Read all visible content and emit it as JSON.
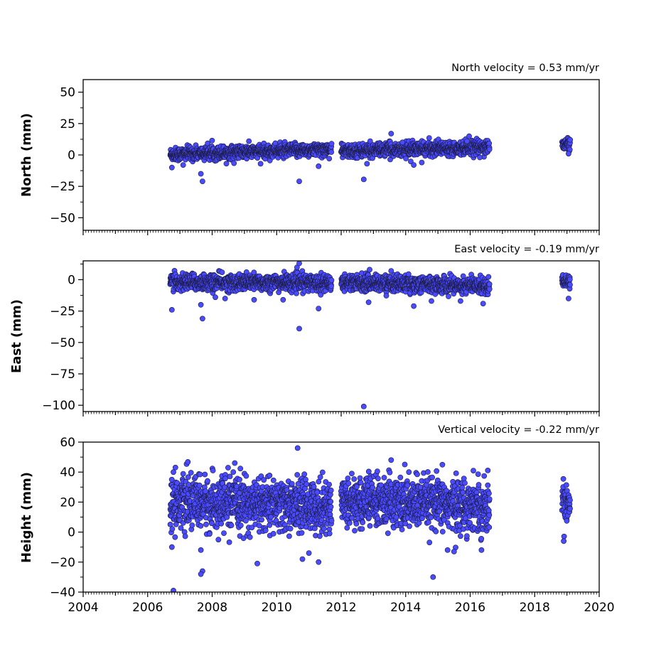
{
  "chart_data": [
    {
      "type": "scatter",
      "id": "north",
      "title": "North velocity = 0.53 mm/yr",
      "ylabel": "North (mm)",
      "xlim": [
        2004,
        2020
      ],
      "ylim": [
        -60,
        60
      ],
      "yticks": [
        -50,
        -25,
        0,
        25,
        50
      ],
      "ytick_labels": [
        "−50",
        "−25",
        "0",
        "25",
        "50"
      ],
      "show_x_tick_labels": false,
      "marker_color": "#4a4aff",
      "segments": [
        {
          "start": 2006.7,
          "end": 2011.7,
          "y0": 0.5,
          "y1": 4.5,
          "spread": 2.6
        },
        {
          "start": 2012.0,
          "end": 2016.6,
          "y0": 3.0,
          "y1": 6.5,
          "spread": 2.6
        },
        {
          "start": 2018.85,
          "end": 2019.1,
          "y0": 8.0,
          "y1": 9.0,
          "spread": 2.2
        }
      ],
      "outliers": [
        [
          2006.75,
          -10
        ],
        [
          2007.7,
          -21
        ],
        [
          2007.65,
          -15
        ],
        [
          2007.1,
          -8
        ],
        [
          2009.5,
          -7
        ],
        [
          2010.7,
          -21
        ],
        [
          2011.3,
          -9
        ],
        [
          2012.7,
          -19.5
        ],
        [
          2012.8,
          -7
        ],
        [
          2013.55,
          17
        ],
        [
          2013.9,
          10
        ],
        [
          2014.25,
          -8
        ],
        [
          2014.5,
          -6
        ],
        [
          2016.3,
          -2
        ],
        [
          2019.05,
          1
        ],
        [
          2012.9,
          11
        ],
        [
          2015.9,
          11
        ]
      ]
    },
    {
      "type": "scatter",
      "id": "east",
      "title": "East velocity = -0.19 mm/yr",
      "ylabel": "East (mm)",
      "xlim": [
        2004,
        2020
      ],
      "ylim": [
        -105,
        15
      ],
      "yticks": [
        -100,
        -75,
        -50,
        -25,
        0
      ],
      "ytick_labels": [
        "−100",
        "−75",
        "−50",
        "−25",
        "0"
      ],
      "show_x_tick_labels": false,
      "marker_color": "#4a4aff",
      "segments": [
        {
          "start": 2006.7,
          "end": 2011.7,
          "y0": -2.0,
          "y1": -2.5,
          "spread": 3.2
        },
        {
          "start": 2012.0,
          "end": 2016.6,
          "y0": -2.0,
          "y1": -5.0,
          "spread": 3.2
        },
        {
          "start": 2018.85,
          "end": 2019.1,
          "y0": -1.0,
          "y1": -1.5,
          "spread": 2.5
        }
      ],
      "outliers": [
        [
          2006.75,
          -24
        ],
        [
          2007.7,
          -31
        ],
        [
          2007.65,
          -20
        ],
        [
          2008.4,
          -15
        ],
        [
          2009.3,
          -16
        ],
        [
          2010.7,
          -39
        ],
        [
          2010.7,
          13
        ],
        [
          2011.3,
          -23
        ],
        [
          2012.7,
          -101
        ],
        [
          2012.85,
          -18
        ],
        [
          2013.55,
          7
        ],
        [
          2014.25,
          -21
        ],
        [
          2014.8,
          -17
        ],
        [
          2015.7,
          -17
        ],
        [
          2016.4,
          -19
        ],
        [
          2019.05,
          -15
        ],
        [
          2008.1,
          -14
        ],
        [
          2010.2,
          -16
        ]
      ]
    },
    {
      "type": "scatter",
      "id": "height",
      "title": "Vertical velocity = -0.22 mm/yr",
      "ylabel": "Height (mm)",
      "xlim": [
        2004,
        2020
      ],
      "ylim": [
        -40,
        60
      ],
      "yticks": [
        -40,
        -20,
        0,
        20,
        40,
        60
      ],
      "ytick_labels": [
        "−40",
        "−20",
        "0",
        "20",
        "40",
        "60"
      ],
      "xticks": [
        2004,
        2006,
        2008,
        2010,
        2012,
        2014,
        2016,
        2018,
        2020
      ],
      "xtick_labels": [
        "2004",
        "2006",
        "2008",
        "2010",
        "2012",
        "2014",
        "2016",
        "2018",
        "2020"
      ],
      "show_x_tick_labels": true,
      "marker_color": "#4a4aff",
      "segments": [
        {
          "start": 2006.7,
          "end": 2011.7,
          "y0": 20.0,
          "y1": 17.0,
          "spread": 8.5
        },
        {
          "start": 2012.0,
          "end": 2016.6,
          "y0": 21.0,
          "y1": 17.0,
          "spread": 8.5
        },
        {
          "start": 2018.85,
          "end": 2019.1,
          "y0": 21.0,
          "y1": 20.0,
          "spread": 7.0
        }
      ],
      "outliers": [
        [
          2006.8,
          -39
        ],
        [
          2006.75,
          -10
        ],
        [
          2007.7,
          -26
        ],
        [
          2007.65,
          -28
        ],
        [
          2007.65,
          -12
        ],
        [
          2009.4,
          -21
        ],
        [
          2010.65,
          56
        ],
        [
          2011.3,
          -20
        ],
        [
          2010.8,
          -18
        ],
        [
          2011.0,
          -14
        ],
        [
          2013.55,
          48
        ],
        [
          2014.85,
          -30
        ],
        [
          2015.3,
          -12
        ],
        [
          2015.5,
          -13
        ],
        [
          2016.35,
          -12
        ],
        [
          2018.9,
          -6
        ],
        [
          2008.7,
          46
        ],
        [
          2016.1,
          41
        ],
        [
          2014.1,
          40
        ],
        [
          2006.8,
          40
        ]
      ]
    }
  ]
}
